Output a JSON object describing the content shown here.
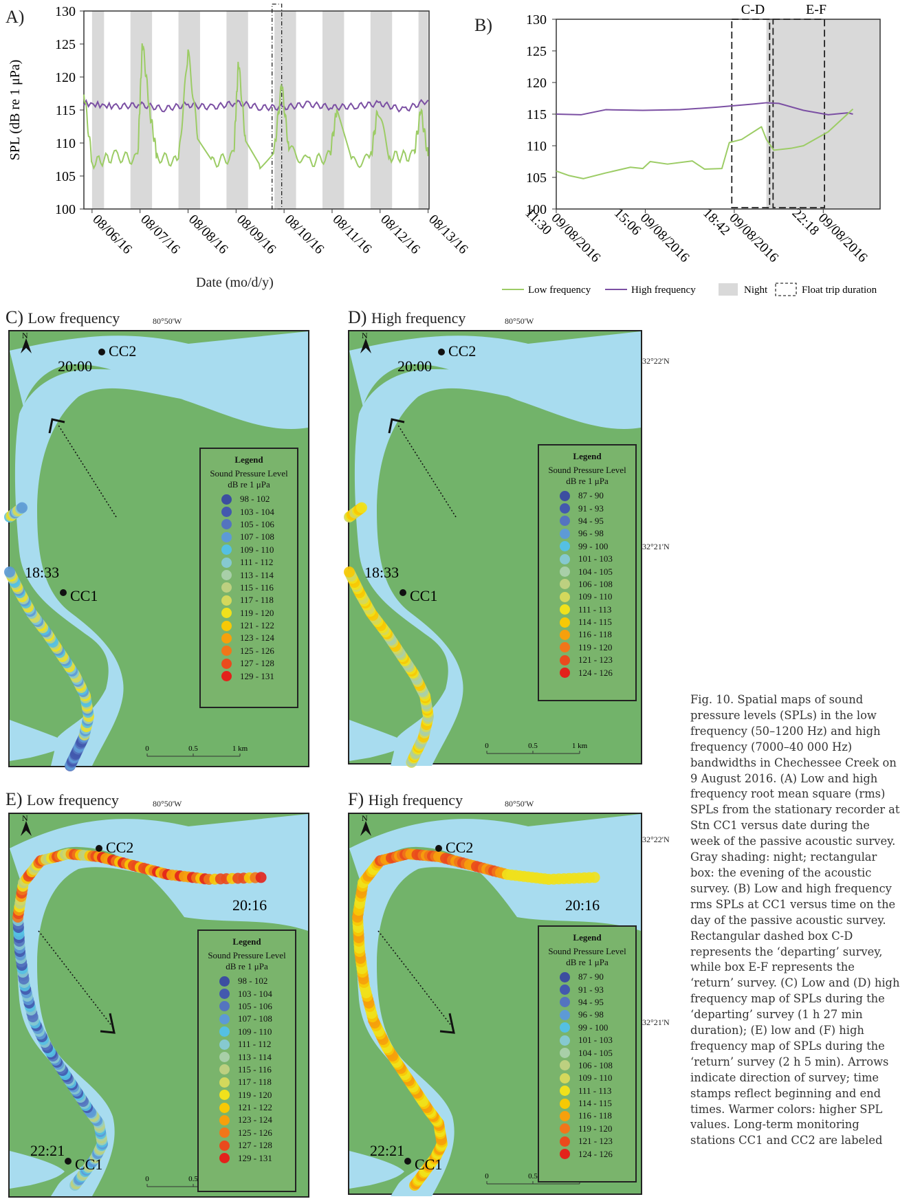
{
  "panel_a": {
    "label": "A)",
    "y_label": "SPL (dB re 1 μPa)",
    "x_label": "Date (mo/d/y)",
    "y_ticks": [
      "100",
      "105",
      "110",
      "115",
      "120",
      "125",
      "130"
    ],
    "x_ticks": [
      "08/06/16",
      "08/07/16",
      "08/08/16",
      "08/09/16",
      "08/10/16",
      "08/11/16",
      "08/12/16",
      "08/13/16"
    ]
  },
  "panel_b": {
    "label": "B)",
    "y_ticks": [
      "100",
      "105",
      "110",
      "115",
      "120",
      "125",
      "130"
    ],
    "x_ticks": [
      "09/08/2016 11:30",
      "09/08/2016 15:06",
      "09/08/2016 18:42",
      "09/08/2016 22:18"
    ],
    "box_cd": "C-D",
    "box_ef": "E-F",
    "legend": {
      "low": "Low frequency",
      "high": "High frequency",
      "night": "Night",
      "float": "Float trip duration"
    }
  },
  "chart_data": [
    {
      "type": "line",
      "panel": "A",
      "xlabel": "Date (mo/d/y)",
      "ylabel": "SPL (dB re 1 μPa)",
      "ylim": [
        100,
        130
      ],
      "x_ticks": [
        "08/06/16",
        "08/07/16",
        "08/08/16",
        "08/09/16",
        "08/10/16",
        "08/11/16",
        "08/12/16",
        "08/13/16"
      ],
      "x_range_days": [
        -0.17,
        7.02
      ],
      "night_shading": [
        [
          0.0,
          0.25
        ],
        [
          0.8,
          1.25
        ],
        [
          1.8,
          2.25
        ],
        [
          2.8,
          3.25
        ],
        [
          3.8,
          4.25
        ],
        [
          4.8,
          5.25
        ],
        [
          5.8,
          6.25
        ],
        [
          6.8,
          7.0
        ]
      ],
      "survey_box": [
        3.75,
        3.95
      ],
      "series": [
        {
          "name": "High frequency",
          "color": "#7b4fa3",
          "points": [
            [
              -0.17,
              116
            ],
            [
              0.5,
              115.5
            ],
            [
              1.0,
              115.8
            ],
            [
              1.5,
              115.2
            ],
            [
              2.0,
              115.8
            ],
            [
              2.5,
              115.4
            ],
            [
              3.0,
              116.1
            ],
            [
              3.5,
              115.4
            ],
            [
              4.0,
              115.4
            ],
            [
              4.5,
              115.9
            ],
            [
              5.0,
              115.4
            ],
            [
              5.5,
              115.6
            ],
            [
              6.0,
              116.0
            ],
            [
              6.5,
              115.0
            ],
            [
              7.0,
              116.5
            ]
          ]
        },
        {
          "name": "Low frequency",
          "color": "#9ccc65",
          "points": [
            [
              -0.17,
              118
            ],
            [
              0.0,
              107
            ],
            [
              0.5,
              108
            ],
            [
              0.95,
              107.5
            ],
            [
              1.05,
              125.5
            ],
            [
              1.2,
              115
            ],
            [
              1.35,
              108
            ],
            [
              1.8,
              107
            ],
            [
              2.0,
              124
            ],
            [
              2.2,
              111
            ],
            [
              2.5,
              107
            ],
            [
              2.95,
              108
            ],
            [
              3.05,
              122.5
            ],
            [
              3.2,
              110
            ],
            [
              3.5,
              107
            ],
            [
              3.8,
              109
            ],
            [
              3.95,
              119
            ],
            [
              4.1,
              109
            ],
            [
              4.5,
              107
            ],
            [
              4.95,
              108
            ],
            [
              5.1,
              115
            ],
            [
              5.4,
              107
            ],
            [
              5.8,
              107.5
            ],
            [
              5.95,
              115
            ],
            [
              6.2,
              108
            ],
            [
              6.7,
              108
            ],
            [
              6.85,
              115
            ],
            [
              7.0,
              108
            ]
          ]
        }
      ]
    },
    {
      "type": "line",
      "panel": "B",
      "ylim": [
        100,
        130
      ],
      "x_ticks": [
        "09/08/2016 11:30",
        "09/08/2016 15:06",
        "09/08/2016 18:42",
        "09/08/2016 22:18"
      ],
      "night_start_hour": 20.0,
      "box_cd_hours": [
        18.6,
        20.13
      ],
      "box_ef_hours": [
        20.27,
        22.35
      ],
      "series": [
        {
          "name": "High frequency",
          "color": "#7b4fa3",
          "points": [
            [
              11.5,
              115.0
            ],
            [
              12.5,
              114.9
            ],
            [
              13.5,
              115.7
            ],
            [
              15.0,
              115.6
            ],
            [
              16.5,
              115.7
            ],
            [
              18.0,
              116.1
            ],
            [
              19.5,
              116.6
            ],
            [
              20.0,
              116.8
            ],
            [
              20.5,
              116.7
            ],
            [
              21.5,
              115.6
            ],
            [
              22.5,
              114.9
            ],
            [
              23.3,
              115.2
            ],
            [
              23.5,
              115.0
            ]
          ]
        },
        {
          "name": "Low frequency",
          "color": "#9ccc65",
          "points": [
            [
              11.5,
              106.0
            ],
            [
              12.0,
              105.3
            ],
            [
              12.6,
              104.8
            ],
            [
              13.5,
              105.7
            ],
            [
              14.5,
              106.6
            ],
            [
              15.0,
              106.4
            ],
            [
              15.3,
              107.5
            ],
            [
              16.0,
              107.1
            ],
            [
              17.0,
              107.6
            ],
            [
              17.5,
              106.3
            ],
            [
              18.2,
              106.4
            ],
            [
              18.5,
              110.5
            ],
            [
              19.0,
              111.0
            ],
            [
              19.8,
              113.0
            ],
            [
              20.0,
              111.0
            ],
            [
              20.3,
              109.3
            ],
            [
              21.0,
              109.6
            ],
            [
              21.5,
              110.0
            ],
            [
              22.5,
              112.2
            ],
            [
              23.5,
              115.8
            ]
          ]
        }
      ]
    }
  ],
  "maps": {
    "c": {
      "letter": "C)",
      "title": "Low frequency"
    },
    "d": {
      "letter": "D)",
      "title": "High frequency"
    },
    "e": {
      "letter": "E)",
      "title": "Low frequency"
    },
    "f": {
      "letter": "F)",
      "title": "High frequency"
    },
    "lon_label": "80°50'W",
    "lat_22": "32°22'N",
    "lat_21": "32°21'N",
    "north": "N",
    "cc1": "CC1",
    "cc2": "CC2",
    "time_c_start": "18:33",
    "time_c_end": "20:00",
    "time_e_start": "20:16",
    "time_e_end": "22:21",
    "scale": [
      "0",
      "0.5",
      "1 km"
    ]
  },
  "legend_low": {
    "title": "Legend",
    "subtitle": "Sound Pressure Level",
    "unit": "dB re 1  μPa",
    "items": [
      {
        "label": "98 - 102",
        "color": "#3c4ea0"
      },
      {
        "label": "103 - 104",
        "color": "#4359ae"
      },
      {
        "label": "105 - 106",
        "color": "#5474bf"
      },
      {
        "label": "107 - 108",
        "color": "#5d9ad6"
      },
      {
        "label": "109 - 110",
        "color": "#55c0e3"
      },
      {
        "label": "111 - 112",
        "color": "#86c9d0"
      },
      {
        "label": "113 - 114",
        "color": "#a8cfa8"
      },
      {
        "label": "115 - 116",
        "color": "#bdd080"
      },
      {
        "label": "117 - 118",
        "color": "#d4d85c"
      },
      {
        "label": "119 - 120",
        "color": "#f0e11c"
      },
      {
        "label": "121 - 122",
        "color": "#f7c905"
      },
      {
        "label": "123 - 124",
        "color": "#f6a00c"
      },
      {
        "label": "125 - 126",
        "color": "#f1761a"
      },
      {
        "label": "127 - 128",
        "color": "#ea4a1d"
      },
      {
        "label": "129 - 131",
        "color": "#e3221b"
      }
    ]
  },
  "legend_high": {
    "title": "Legend",
    "subtitle": "Sound Pressure Level",
    "unit": "dB re 1  μPa",
    "items": [
      {
        "label": "87 - 90",
        "color": "#3c4ea0"
      },
      {
        "label": "91 - 93",
        "color": "#4359ae"
      },
      {
        "label": "94 - 95",
        "color": "#5474bf"
      },
      {
        "label": "96 - 98",
        "color": "#5d9ad6"
      },
      {
        "label": "99 - 100",
        "color": "#55c0e3"
      },
      {
        "label": "101 - 103",
        "color": "#86c9d0"
      },
      {
        "label": "104 - 105",
        "color": "#a8cfa8"
      },
      {
        "label": "106 - 108",
        "color": "#bdd080"
      },
      {
        "label": "109 - 110",
        "color": "#d4d85c"
      },
      {
        "label": "111 - 113",
        "color": "#f0e11c"
      },
      {
        "label": "114 - 115",
        "color": "#f7c905"
      },
      {
        "label": "116 - 118",
        "color": "#f6a00c"
      },
      {
        "label": "119 - 120",
        "color": "#f1761a"
      },
      {
        "label": "121 - 123",
        "color": "#ea4a1d"
      },
      {
        "label": "124 - 126",
        "color": "#e3221b"
      }
    ]
  },
  "caption": "Fig. 10. Spatial maps of sound pressure levels (SPLs) in the low frequency (50–1200 Hz) and high frequency (7000–40 000 Hz) bandwidths in Chechessee Creek on 9 August 2016. (A) Low and high frequency root mean square (rms) SPLs from the stationary recorder at Stn CC1 versus date during the week of the passive acoustic survey. Gray shading: night; rectangular box: the evening of the acoustic survey. (B) Low and high frequency rms SPLs at CC1 versus time on the day of the passive acoustic survey. Rectangular dashed box C-D represents the ‘departing’ survey, while box E-F represents the ‘return’ survey. (C) Low and (D) high frequency map of SPLs during the ‘departing’ survey (1 h 27 min duration); (E) low and (F) high frequency map of SPLs during the ‘return’ survey (2 h 5 min). Arrows indicate direction of survey; time stamps reflect beginning and end times. Warmer colors: higher SPL values. Long-term monitoring stations CC1 and CC2 are labeled"
}
